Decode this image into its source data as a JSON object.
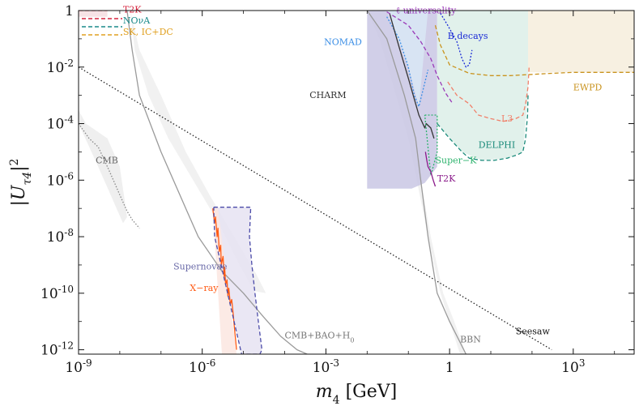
{
  "chart_data": {
    "type": "line",
    "title": "",
    "xlabel": "m_4 [GeV]",
    "ylabel": "|U_τ4|^2",
    "xscale": "log",
    "yscale": "log",
    "xlim": [
      1e-09,
      30000
    ],
    "ylim": [
      7e-13,
      1
    ],
    "grid": false,
    "legend_position": "top-left",
    "x_ticks": [
      {
        "value": 1e-09,
        "label": "10^-9"
      },
      {
        "value": 1e-06,
        "label": "10^-6"
      },
      {
        "value": 0.001,
        "label": "10^-3"
      },
      {
        "value": 1,
        "label": "1"
      },
      {
        "value": 1000,
        "label": "10^3"
      }
    ],
    "y_ticks": [
      {
        "value": 1,
        "label": "1"
      },
      {
        "value": 0.01,
        "label": "10^-2"
      },
      {
        "value": 0.0001,
        "label": "10^-4"
      },
      {
        "value": 1e-06,
        "label": "10^-6"
      },
      {
        "value": 1e-08,
        "label": "10^-8"
      },
      {
        "value": 1e-10,
        "label": "10^-10"
      },
      {
        "value": 1e-12,
        "label": "10^-12"
      }
    ],
    "legend": [
      {
        "name": "T2K",
        "color": "#d6243e",
        "dash": "5,3"
      },
      {
        "name": "NOνA",
        "color": "#1a8a8a",
        "dash": "5,3"
      },
      {
        "name": "SK, IC+DC",
        "color": "#e0a020",
        "dash": "5,3"
      }
    ],
    "series": [
      {
        "name": "Seesaw",
        "color": "#222222",
        "dash": "1.5,2.5",
        "x": [
          1e-09,
          300
        ],
        "y": [
          0.01,
          1e-12
        ]
      },
      {
        "name": "CMB+BAO+H0",
        "color": "#9a9a9a",
        "dash": "",
        "x": [
          1.5e-08,
          2e-08,
          3e-08,
          1e-07,
          4e-07,
          8e-07,
          3e-06,
          1e-05,
          3e-05,
          8e-05,
          0.0002,
          0.00035
        ],
        "y": [
          1,
          0.04,
          0.001,
          1e-05,
          1e-07,
          1e-08,
          6e-10,
          1e-10,
          1.5e-11,
          3e-12,
          1e-12,
          7e-13
        ]
      },
      {
        "name": "BBN",
        "color": "#9a9a9a",
        "dash": "",
        "x": [
          0.01,
          0.03,
          0.08,
          0.15,
          0.2,
          0.3,
          0.5,
          1,
          2.5
        ],
        "y": [
          1,
          0.1,
          0.001,
          3e-05,
          1e-06,
          1e-08,
          1e-10,
          1e-11,
          7e-13
        ]
      },
      {
        "name": "CMB",
        "color": "#888888",
        "dash": "1.5,2",
        "x": [
          1e-09,
          1.8e-09,
          3e-09,
          5e-09,
          7e-09,
          1e-08,
          1.5e-08,
          2e-08,
          3e-08
        ],
        "y": [
          0.0001,
          3e-05,
          1.5e-05,
          3e-06,
          1e-06,
          3e-07,
          8e-08,
          4e-08,
          2e-08
        ]
      },
      {
        "name": "X-ray",
        "color": "#ff5a14",
        "dash": "",
        "x": [
          1.8e-06,
          2e-06,
          2.1e-06,
          2.3e-06,
          2.4e-06,
          2.6e-06,
          2.8e-06,
          2.9e-06,
          3.2e-06,
          3.4e-06,
          3.5e-06,
          3.7e-06,
          4e-06,
          4.2e-06,
          4.4e-06,
          4.8e-06,
          5.2e-06,
          5.6e-06,
          6.2e-06,
          6.8e-06
        ],
        "y": [
          1e-07,
          3e-08,
          5e-08,
          1e-08,
          2e-08,
          3e-09,
          5e-09,
          1e-09,
          2e-09,
          4e-10,
          8e-10,
          2e-10,
          3e-10,
          8e-11,
          1.5e-10,
          4e-11,
          6e-11,
          2e-11,
          4e-12,
          1e-12
        ]
      },
      {
        "name": "Supernovae",
        "color": "#4b4ba8",
        "dash": "5,3",
        "x": [
          1.9e-06,
          1.5e-05,
          1.4e-05,
          1.6e-05,
          1.9e-05,
          2.3e-05,
          2.8e-05,
          2.5e-05,
          9e-06,
          2e-06,
          1.9e-06
        ],
        "y": [
          1.1e-07,
          1.1e-07,
          1e-08,
          1e-09,
          1e-10,
          1e-11,
          1e-12,
          7e-13,
          7e-13,
          1e-08,
          1.1e-07
        ]
      },
      {
        "name": "NOMAD",
        "color": "#3a8ee6",
        "dash": "2,2",
        "x": [
          0.03,
          0.06,
          0.1,
          0.14,
          0.18,
          0.3
        ],
        "y": [
          0.6,
          0.1,
          0.01,
          0.001,
          0.0004,
          0.008
        ]
      },
      {
        "name": "CHARM",
        "color": "#333333",
        "dash": "",
        "x": [
          0.035,
          0.06,
          0.1,
          0.18,
          0.25,
          0.27,
          0.35,
          0.42
        ],
        "y": [
          0.8,
          0.05,
          0.004,
          0.0002,
          7e-05,
          0.0001,
          7e-05,
          3e-05
        ]
      },
      {
        "name": "Super-K",
        "color": "#2db36d",
        "dash": "2,2",
        "x": [
          0.25,
          0.5,
          0.5,
          0.4,
          0.35,
          0.25
        ],
        "y": [
          0.0002,
          0.0002,
          1e-05,
          3e-06,
          1.5e-06,
          0.0002
        ]
      },
      {
        "name": "T2K",
        "color": "#8a1a8a",
        "dash": "",
        "x": [
          0.26,
          0.28,
          0.3,
          0.35,
          0.4,
          0.45
        ],
        "y": [
          1e-05,
          5e-06,
          3e-06,
          2e-06,
          1e-06,
          6e-07
        ]
      },
      {
        "name": "ℓ universality",
        "color": "#9a3ab8",
        "dash": "5,3",
        "x": [
          0.03,
          0.1,
          0.2,
          0.35,
          0.5,
          0.8,
          1.2
        ],
        "y": [
          0.9,
          0.3,
          0.08,
          0.02,
          0.005,
          0.0012,
          0.0005
        ]
      },
      {
        "name": "B decays",
        "color": "#1a2ad6",
        "dash": "2,2",
        "x": [
          0.6,
          0.9,
          1.5,
          2.0,
          2.5,
          3.0,
          3.5
        ],
        "y": [
          0.8,
          0.3,
          0.08,
          0.02,
          0.01,
          0.012,
          0.04
        ]
      },
      {
        "name": "L3",
        "color": "#f0806a",
        "dash": "5,3",
        "x": [
          0.9,
          1.5,
          3,
          5,
          10,
          20,
          40,
          60,
          70,
          80,
          85
        ],
        "y": [
          0.003,
          0.001,
          0.0005,
          0.0002,
          0.00015,
          0.00012,
          0.00015,
          0.0002,
          0.0005,
          0.002,
          0.01
        ]
      },
      {
        "name": "DELPHI",
        "color": "#1a8a7a",
        "dash": "5,3",
        "x": [
          0.5,
          1,
          2,
          3,
          6,
          12,
          25,
          45,
          60,
          70,
          78,
          80
        ],
        "y": [
          0.0001,
          3e-05,
          1e-05,
          6e-06,
          5e-06,
          5e-06,
          6e-06,
          8e-06,
          1e-05,
          3e-05,
          0.0002,
          0.001
        ]
      },
      {
        "name": "EWPD",
        "color": "#c9931e",
        "dash": "5,3",
        "x": [
          0.45,
          0.6,
          1,
          3,
          10,
          30,
          100,
          300,
          1000,
          3000,
          30000
        ],
        "y": [
          0.3,
          0.06,
          0.012,
          0.006,
          0.005,
          0.005,
          0.0055,
          0.006,
          0.0065,
          0.0065,
          0.0065
        ]
      },
      {
        "name": "T2K (legend region)",
        "color": "#d6243e",
        "dash": "5,3",
        "x": [
          1e-09,
          5e-09
        ],
        "y": [
          1,
          1
        ]
      }
    ],
    "regions": [
      {
        "name": "CMB band",
        "color": "#ececec",
        "x": [
          1e-09,
          3e-09,
          1.2e-08,
          1.5e-08,
          1e-08,
          5e-09,
          1.5e-09,
          1e-09
        ],
        "y": [
          0.0001,
          3e-06,
          3e-08,
          5e-08,
          3e-06,
          3e-05,
          0.0001,
          0.0003
        ]
      },
      {
        "name": "CMB+BAO band",
        "color": "#efefef",
        "x": [
          1.8e-08,
          3e-08,
          1e-07,
          4e-07,
          1.5e-06,
          6e-06,
          2e-05,
          3.5e-05,
          1.8e-05,
          8e-06,
          2.5e-06,
          6e-07,
          1.5e-07,
          5e-08,
          2.3e-08,
          1.8e-08
        ],
        "y": [
          1,
          0.04,
          0.001,
          1e-05,
          3e-07,
          1e-08,
          5e-10,
          1e-10,
          1.2e-10,
          1e-09,
          3e-08,
          1e-06,
          3e-05,
          0.001,
          0.04,
          1
        ]
      },
      {
        "name": "BBN band",
        "color": "#efefef",
        "x": [
          0.01,
          0.03,
          0.08,
          0.15,
          0.2,
          0.35,
          0.7,
          1.3,
          2.5,
          1.8,
          0.6,
          0.3,
          0.16,
          0.1,
          0.05,
          0.02,
          0.01
        ],
        "y": [
          1,
          0.1,
          0.001,
          3e-05,
          1e-06,
          1e-08,
          1e-10,
          1e-11,
          7e-13,
          7e-13,
          1e-10,
          1e-08,
          1e-06,
          3e-05,
          0.001,
          0.1,
          1
        ]
      },
      {
        "name": "Supernovae region",
        "color": "#e6e3f2",
        "x": [
          1.9e-06,
          1.5e-05,
          1.4e-05,
          1.6e-05,
          1.9e-05,
          2.3e-05,
          2.8e-05,
          2.5e-05,
          9e-06,
          2e-06,
          1.9e-06
        ],
        "y": [
          1.1e-07,
          1.1e-07,
          1e-08,
          1e-09,
          1e-10,
          1e-11,
          1e-12,
          7e-13,
          7e-13,
          1e-08,
          1.1e-07
        ]
      },
      {
        "name": "X-ray region",
        "color": "#fbe6e0",
        "x": [
          1.8e-06,
          2.4e-06,
          6.8e-06,
          3e-06,
          1.8e-06
        ],
        "y": [
          1e-07,
          1e-07,
          7e-13,
          7e-13,
          1e-07
        ]
      },
      {
        "name": "Beam dump region",
        "color": "#c9c7e4",
        "x": [
          0.01,
          0.5,
          0.5,
          0.35,
          0.25,
          0.12,
          0.01
        ],
        "y": [
          1,
          1,
          3e-06,
          1.5e-06,
          8e-07,
          5e-07,
          5e-07
        ]
      },
      {
        "name": "NOMAD region",
        "color": "#d9e8f5",
        "x": [
          0.03,
          0.3,
          0.18,
          0.1,
          0.03
        ],
        "y": [
          1,
          1,
          0.0004,
          0.01,
          1
        ]
      },
      {
        "name": "DELPHI region",
        "color": "#dcefe8",
        "x": [
          0.5,
          80,
          80,
          60,
          25,
          6,
          2,
          0.5
        ],
        "y": [
          1,
          1,
          0.001,
          1e-05,
          6e-06,
          5e-06,
          1e-05,
          0.0001
        ]
      },
      {
        "name": "EWPD region",
        "color": "#f6eddc",
        "x": [
          80,
          30000,
          30000,
          80
        ],
        "y": [
          1,
          1,
          0.0065,
          0.0065
        ]
      },
      {
        "name": "Neutrino oscillation region",
        "color": "#f6dde0",
        "x": [
          1e-09,
          5e-09,
          5e-09,
          1e-09
        ],
        "y": [
          1,
          1,
          0.6,
          0.6
        ]
      }
    ],
    "annotations": [
      {
        "text": "T2K",
        "x": 1.2e-08,
        "y": 0.85,
        "color": "#d6243e"
      },
      {
        "text": "NOνA",
        "x": 1.2e-08,
        "y": 0.35,
        "color": "#1a8a8a"
      },
      {
        "text": "SK, IC+DC",
        "x": 1.2e-08,
        "y": 0.14,
        "color": "#e0a020"
      },
      {
        "text": "ℓ universality",
        "x": 0.05,
        "y": 0.8,
        "color": "#9a3ab8"
      },
      {
        "text": "NOMAD",
        "x": 0.0009,
        "y": 0.06,
        "color": "#3a8ee6"
      },
      {
        "text": "B decays",
        "x": 0.9,
        "y": 0.1,
        "color": "#1a2ad6"
      },
      {
        "text": "CHARM",
        "x": 0.0004,
        "y": 0.0008,
        "color": "#333333"
      },
      {
        "text": "L3",
        "x": 18,
        "y": 0.00012,
        "color": "#f0806a"
      },
      {
        "text": "DELPHI",
        "x": 5,
        "y": 1.4e-05,
        "color": "#1a8a7a"
      },
      {
        "text": "EWPD",
        "x": 1000,
        "y": 0.0015,
        "color": "#c9931e"
      },
      {
        "text": "Super−K",
        "x": 0.45,
        "y": 4e-06,
        "color": "#2db36d"
      },
      {
        "text": "T2K",
        "x": 0.5,
        "y": 9e-07,
        "color": "#8a1a8a"
      },
      {
        "text": "CMB",
        "x": 2.6e-09,
        "y": 4e-06,
        "color": "#666666"
      },
      {
        "text": "Supernovae",
        "x": 2e-07,
        "y": 7e-10,
        "color": "#6a6aa8"
      },
      {
        "text": "X−ray",
        "x": 5e-07,
        "y": 1.2e-10,
        "color": "#ff5a14"
      },
      {
        "text": "CMB+BAO+H_0",
        "x": 0.0001,
        "y": 2.5e-12,
        "color": "#777777"
      },
      {
        "text": "BBN",
        "x": 1.8,
        "y": 1.8e-12,
        "color": "#777777"
      },
      {
        "text": "Seesaw",
        "x": 40,
        "y": 3.5e-12,
        "color": "#111111"
      }
    ]
  }
}
